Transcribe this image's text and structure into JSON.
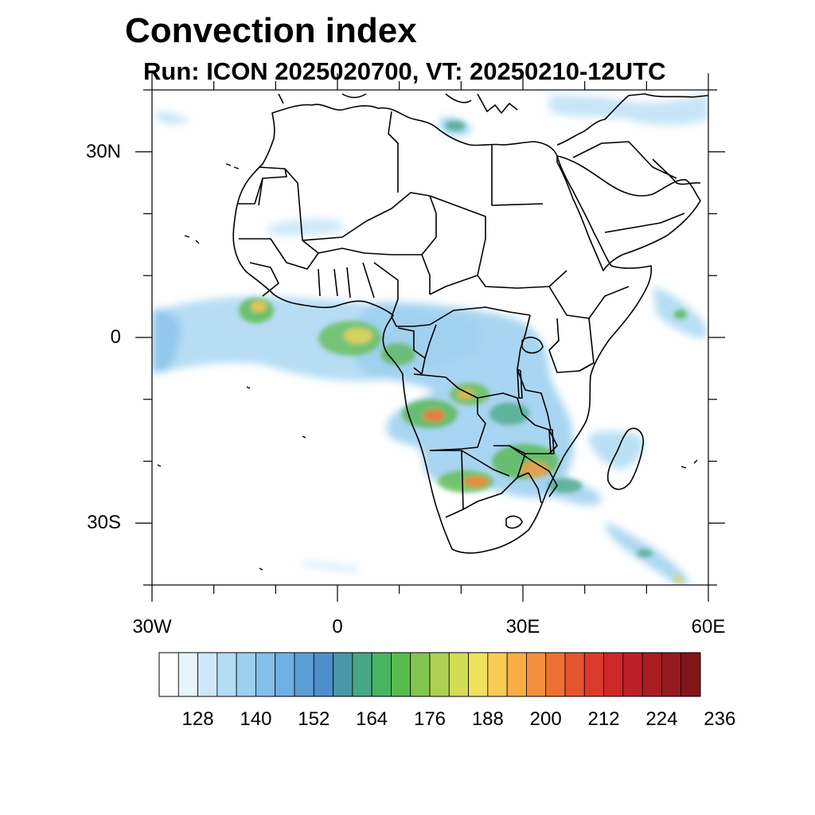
{
  "title": "Convection index",
  "subtitle": "Run: ICON 2025020700,  VT: 20250210-12UTC",
  "axes": {
    "lon_range": [
      -30,
      60
    ],
    "lat_range": [
      -40,
      40
    ],
    "y_ticks": [
      {
        "lat": 30,
        "label": "30N"
      },
      {
        "lat": 0,
        "label": "0"
      },
      {
        "lat": -30,
        "label": "30S"
      }
    ],
    "x_ticks": [
      {
        "lon": -30,
        "label": "30W"
      },
      {
        "lon": 0,
        "label": "0"
      },
      {
        "lon": 30,
        "label": "30E"
      },
      {
        "lon": 60,
        "label": "60E"
      }
    ]
  },
  "colorbar": {
    "colors": [
      "#ffffff",
      "#e6f4fc",
      "#cde8f8",
      "#b4dcf4",
      "#9bd0f0",
      "#82c0ea",
      "#6fb0e2",
      "#5c9ed6",
      "#4d8fca",
      "#4898a8",
      "#46a686",
      "#48b462",
      "#58bc4c",
      "#84c450",
      "#aed052",
      "#d4dc56",
      "#f0e25c",
      "#f8cc54",
      "#f7ae48",
      "#f4903c",
      "#ee7034",
      "#e6542e",
      "#dc3a2a",
      "#cf2828",
      "#bd2026",
      "#a81c22",
      "#941a1e",
      "#80161a"
    ],
    "labels": [
      "128",
      "140",
      "152",
      "164",
      "176",
      "188",
      "200",
      "212",
      "224",
      "236"
    ]
  }
}
